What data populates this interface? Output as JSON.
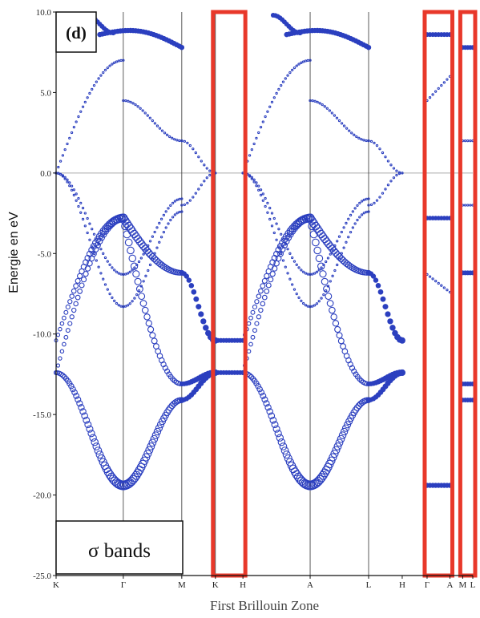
{
  "chart_data": {
    "type": "scatter",
    "title": "",
    "panel_label": "(d)",
    "legend_label": "σ bands",
    "xlabel": "First Brillouin Zone",
    "ylabel": "Energie en eV",
    "ylim": [
      -25.0,
      10.0
    ],
    "yticks": [
      "10.0",
      "5.0",
      "0.0",
      "-5.0",
      "-10.0",
      "-15.0",
      "-20.0",
      "-25.0"
    ],
    "k_points": [
      {
        "label": "K",
        "pos": 0.0
      },
      {
        "label": "Γ",
        "pos": 1.0
      },
      {
        "label": "M",
        "pos": 1.87
      },
      {
        "label": "K",
        "pos": 2.37
      },
      {
        "label": "H",
        "pos": 2.78
      },
      {
        "label": "A",
        "pos": 3.78
      },
      {
        "label": "L",
        "pos": 4.65
      },
      {
        "label": "H",
        "pos": 5.15
      },
      {
        "label": "Γ",
        "pos": 5.52
      },
      {
        "label": "A",
        "pos": 5.86
      },
      {
        "label": "M",
        "pos": 6.05
      },
      {
        "label": "L",
        "pos": 6.2
      }
    ],
    "fermi_level": 0.0,
    "sigma_energies_at_high_symmetry": {
      "K": [
        -10.4,
        -12.4
      ],
      "Γ": [
        -2.8,
        -2.8,
        -19.4,
        8.6
      ],
      "M": [
        -6.2,
        -13.1,
        -14.1,
        7.8
      ],
      "H": [
        -10.4,
        -12.4
      ],
      "A": [
        -2.8,
        -2.8,
        -19.4,
        8.6
      ],
      "L": [
        -6.2,
        -13.1,
        -14.1,
        7.8
      ]
    },
    "pi_energies_at_high_symmetry": {
      "K": [
        0.0,
        0.0
      ],
      "Γ": [
        -8.3,
        -6.3,
        4.5,
        7.0
      ],
      "M": [
        -2.4,
        2.4,
        -1.6,
        1.6
      ],
      "A": [
        -7.4,
        -7.4,
        4.5
      ],
      "L": [
        -1.7,
        1.7
      ],
      "H": [
        0.0
      ]
    },
    "highlight_boxes": [
      {
        "from": "K",
        "to": "H",
        "color": "#e8382a"
      },
      {
        "from": "Γ",
        "to": "A",
        "color": "#e8382a"
      },
      {
        "from": "M",
        "to": "L",
        "color": "#e8382a"
      }
    ],
    "series_color": "#2b3fbf"
  }
}
